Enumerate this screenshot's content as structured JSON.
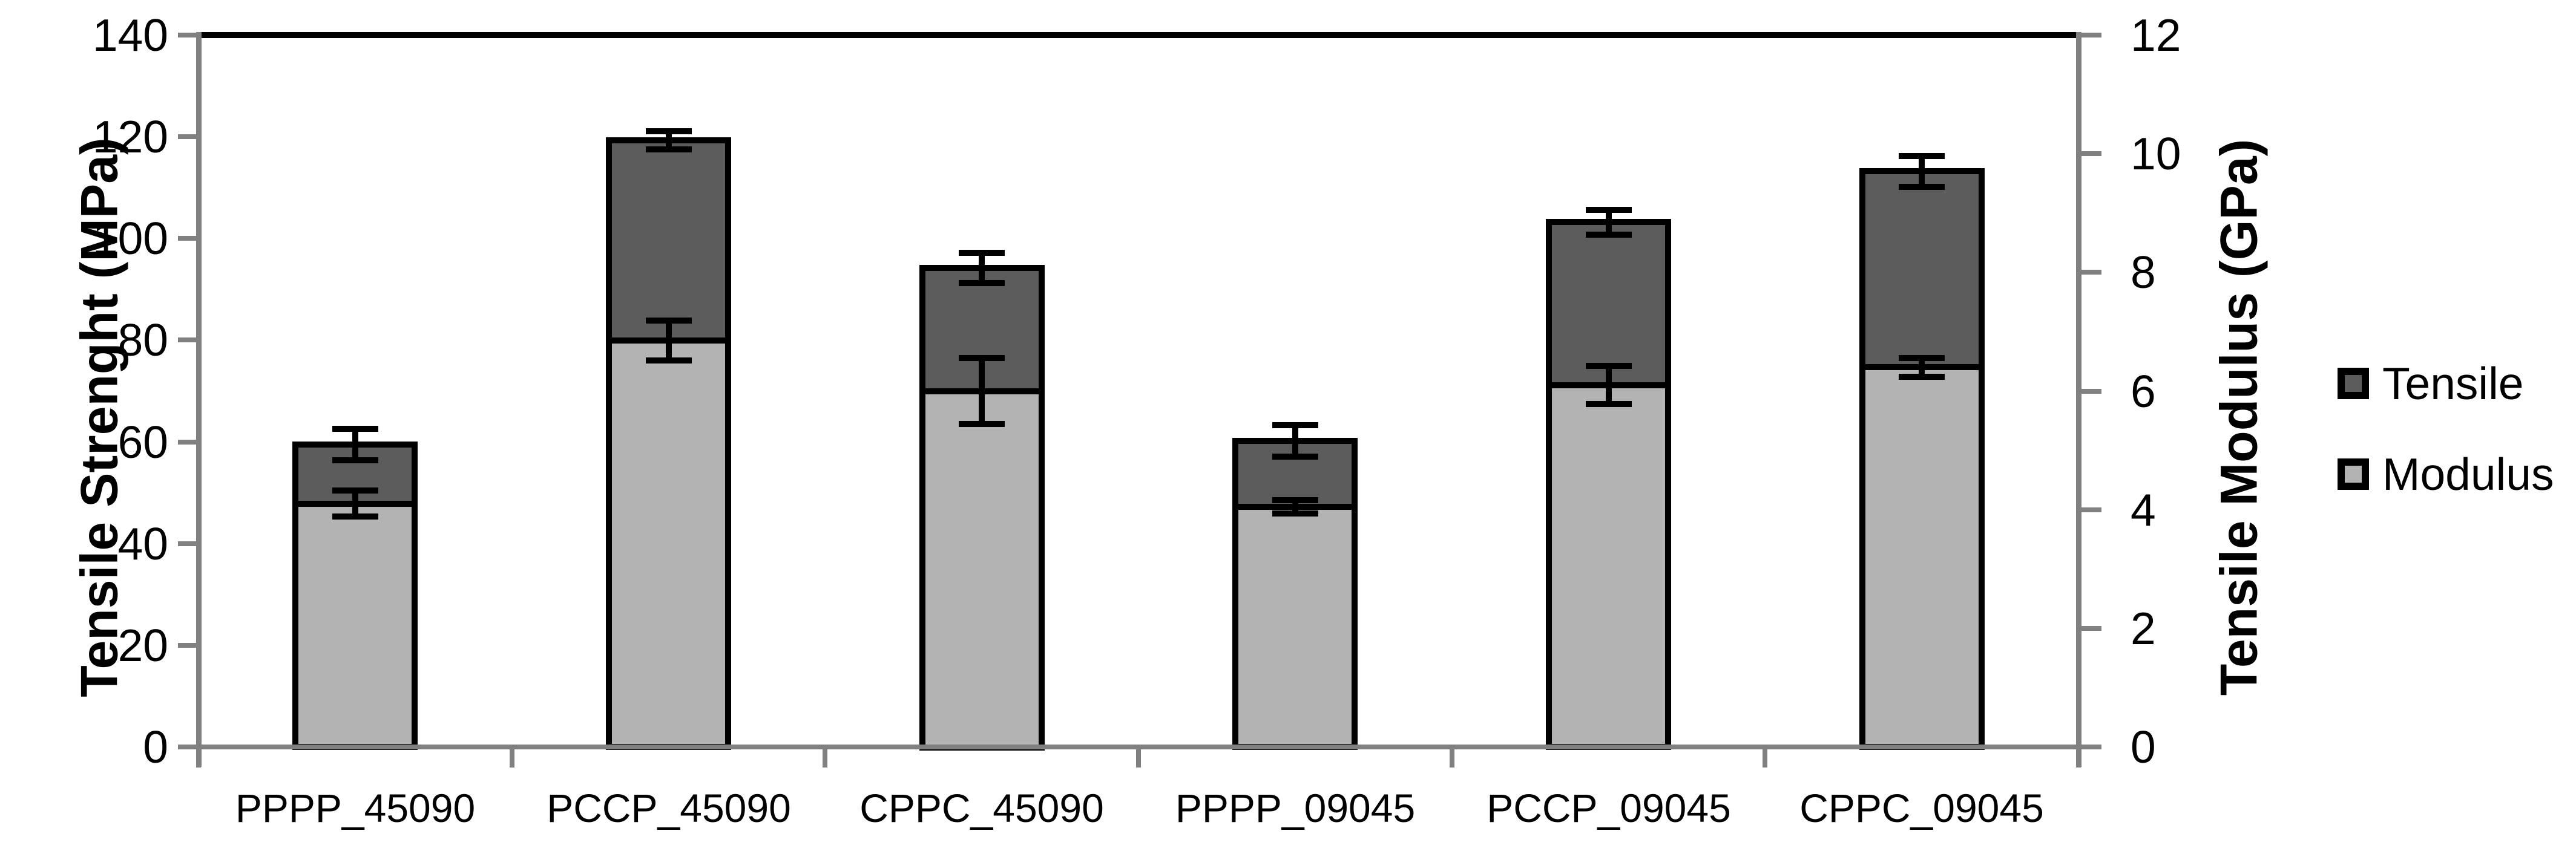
{
  "chart_data": {
    "type": "bar",
    "categories": [
      "PPPP_45090",
      "PCCP_45090",
      "CPPC_45090",
      "PPPP_09045",
      "PCCP_09045",
      "CPPC_09045"
    ],
    "series": [
      {
        "name": "Tensile",
        "axis": "left",
        "unit": "MPa",
        "color": "#5c5c5c",
        "values": [
          59.5,
          119.3,
          94.2,
          60.2,
          103.2,
          113.2
        ],
        "errors": [
          3.1,
          1.8,
          3.0,
          3.1,
          2.4,
          3.0
        ]
      },
      {
        "name": "Modulus",
        "axis": "right",
        "unit": "GPa",
        "color": "#b3b3b3",
        "values": [
          4.1,
          6.85,
          6.0,
          4.05,
          6.1,
          6.4
        ],
        "errors": [
          0.22,
          0.34,
          0.56,
          0.11,
          0.32,
          0.16
        ]
      }
    ],
    "left_axis": {
      "title": "Tensile Strenght (MPa)",
      "min": 0,
      "max": 140,
      "ticks": [
        0,
        20,
        40,
        60,
        80,
        100,
        120,
        140
      ]
    },
    "right_axis": {
      "title": "Tensile Modulus (GPa)",
      "min": 0,
      "max": 12,
      "ticks": [
        0,
        2,
        4,
        6,
        8,
        10,
        12
      ]
    },
    "legend": {
      "position": "right",
      "entries": [
        {
          "label": "Tensile",
          "color": "#5c5c5c"
        },
        {
          "label": "Modulus",
          "color": "#b3b3b3"
        }
      ]
    },
    "grid": false,
    "bar_outline_color": "#000000",
    "axis_color": "#808080",
    "plot_top_border_color": "#000000",
    "background": "#ffffff"
  }
}
